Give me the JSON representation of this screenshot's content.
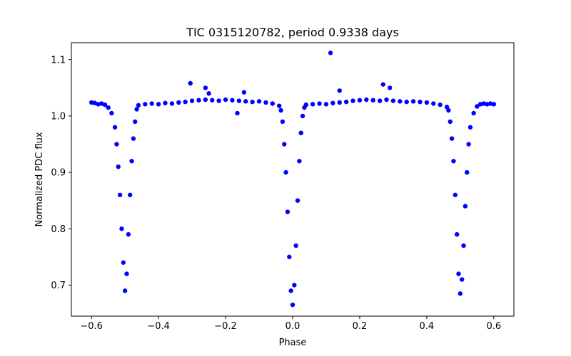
{
  "chart_data": {
    "type": "scatter",
    "title": "TIC 0315120782, period 0.9338 days",
    "xlabel": "Phase",
    "ylabel": "Normalized PDC flux",
    "xlim": [
      -0.66,
      0.66
    ],
    "ylim": [
      0.645,
      1.13
    ],
    "xticks": [
      {
        "value": -0.6,
        "label": "−0.6"
      },
      {
        "value": -0.4,
        "label": "−0.4"
      },
      {
        "value": -0.2,
        "label": "−0.2"
      },
      {
        "value": 0.0,
        "label": "0.0"
      },
      {
        "value": 0.2,
        "label": "0.2"
      },
      {
        "value": 0.4,
        "label": "0.4"
      },
      {
        "value": 0.6,
        "label": "0.6"
      }
    ],
    "yticks": [
      {
        "value": 0.7,
        "label": "0.7"
      },
      {
        "value": 0.8,
        "label": "0.8"
      },
      {
        "value": 0.9,
        "label": "0.9"
      },
      {
        "value": 1.0,
        "label": "1.0"
      },
      {
        "value": 1.1,
        "label": "1.1"
      }
    ],
    "grid": false,
    "legend": "none",
    "marker_color": "#0000ff",
    "series": [
      {
        "x": [
          -0.6,
          -0.59,
          -0.58,
          -0.57,
          -0.56,
          -0.55,
          -0.54,
          -0.53,
          -0.525,
          -0.52,
          -0.515,
          -0.51,
          -0.505,
          -0.5,
          -0.495,
          -0.49,
          -0.485,
          -0.48,
          -0.475,
          -0.47,
          -0.465,
          -0.46,
          -0.44,
          -0.42,
          -0.4,
          -0.38,
          -0.36,
          -0.34,
          -0.32,
          -0.3,
          -0.28,
          -0.26,
          -0.24,
          -0.22,
          -0.2,
          -0.18,
          -0.16,
          -0.14,
          -0.12,
          -0.1,
          -0.08,
          -0.06,
          -0.04,
          -0.035,
          -0.03,
          -0.025,
          -0.02,
          -0.015,
          -0.01,
          -0.005,
          0.0,
          0.005,
          0.01,
          0.015,
          0.02,
          0.025,
          0.03,
          0.035,
          0.04,
          0.06,
          0.08,
          0.1,
          0.12,
          0.14,
          0.16,
          0.18,
          0.2,
          0.22,
          0.24,
          0.26,
          0.28,
          0.3,
          0.32,
          0.34,
          0.36,
          0.38,
          0.4,
          0.42,
          0.44,
          0.46,
          0.465,
          0.47,
          0.475,
          0.48,
          0.485,
          0.49,
          0.495,
          0.5,
          0.505,
          0.51,
          0.515,
          0.52,
          0.525,
          0.53,
          0.54,
          0.55,
          0.56,
          0.57,
          0.58,
          0.59,
          0.6,
          -0.305,
          -0.26,
          -0.25,
          -0.145,
          -0.165,
          0.113,
          0.14,
          0.27,
          0.29
        ],
        "y": [
          1.024,
          1.023,
          1.021,
          1.022,
          1.02,
          1.015,
          1.005,
          0.98,
          0.95,
          0.91,
          0.86,
          0.8,
          0.74,
          0.69,
          0.72,
          0.79,
          0.86,
          0.92,
          0.96,
          0.99,
          1.012,
          1.019,
          1.021,
          1.022,
          1.021,
          1.023,
          1.022,
          1.024,
          1.025,
          1.027,
          1.028,
          1.029,
          1.028,
          1.027,
          1.029,
          1.028,
          1.027,
          1.026,
          1.025,
          1.026,
          1.024,
          1.022,
          1.018,
          1.01,
          0.99,
          0.95,
          0.9,
          0.83,
          0.75,
          0.69,
          0.665,
          0.7,
          0.77,
          0.85,
          0.92,
          0.97,
          1.0,
          1.015,
          1.02,
          1.021,
          1.022,
          1.021,
          1.023,
          1.024,
          1.025,
          1.027,
          1.028,
          1.029,
          1.028,
          1.027,
          1.029,
          1.027,
          1.026,
          1.025,
          1.026,
          1.025,
          1.024,
          1.022,
          1.02,
          1.016,
          1.01,
          0.99,
          0.96,
          0.92,
          0.86,
          0.79,
          0.72,
          0.685,
          0.71,
          0.77,
          0.84,
          0.9,
          0.95,
          0.98,
          1.005,
          1.017,
          1.021,
          1.022,
          1.021,
          1.022,
          1.021,
          1.058,
          1.05,
          1.04,
          1.042,
          1.005,
          1.112,
          1.045,
          1.056,
          1.05
        ]
      }
    ]
  }
}
